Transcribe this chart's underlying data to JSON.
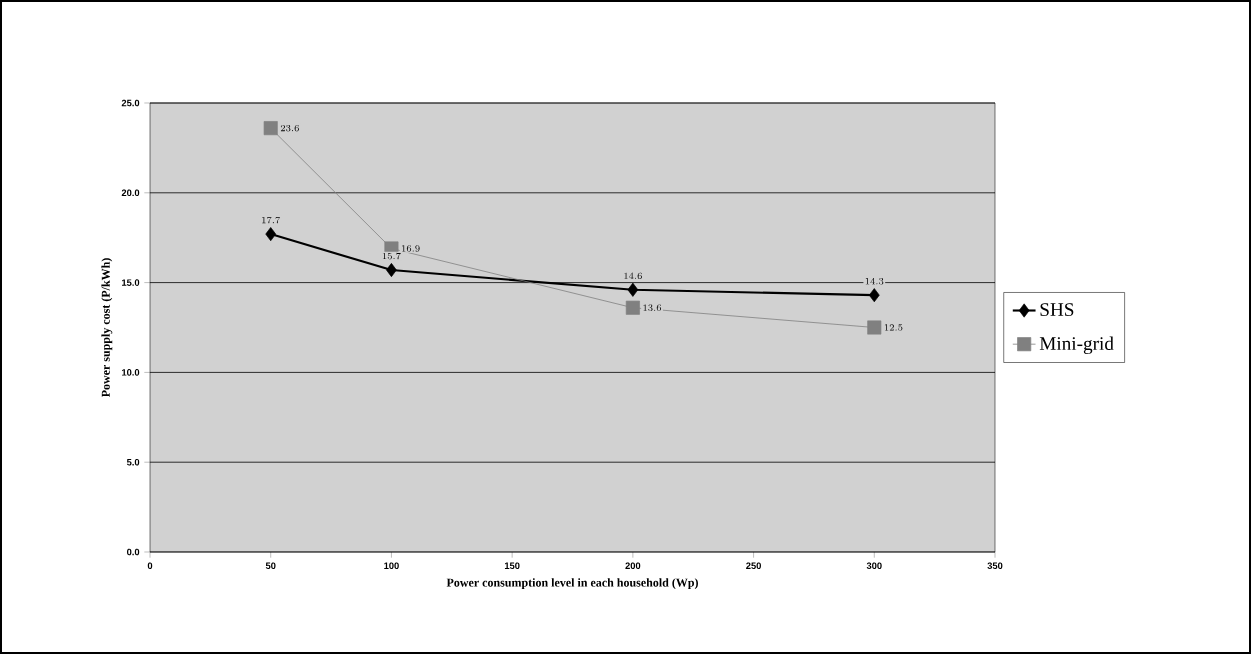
{
  "chart_data": {
    "type": "line",
    "xlabel": "Power consumption level in each household (Wp)",
    "ylabel": "Power supply cost (P/kWh)",
    "x": [
      50,
      100,
      200,
      300
    ],
    "series": [
      {
        "name": "SHS",
        "color": "#000000",
        "marker": "diamond",
        "values": [
          17.7,
          15.7,
          14.6,
          14.3
        ]
      },
      {
        "name": "Mini-grid",
        "color": "#808080",
        "marker": "square",
        "values": [
          23.6,
          16.9,
          13.6,
          12.5
        ]
      }
    ],
    "xlim": [
      0,
      350
    ],
    "xticks": [
      0,
      50,
      100,
      150,
      200,
      250,
      300,
      350
    ],
    "ylim": [
      0,
      25
    ],
    "yticks": [
      {
        "value": 0,
        "label": "0.0"
      },
      {
        "value": 5,
        "label": "5.0"
      },
      {
        "value": 10,
        "label": "10.0"
      },
      {
        "value": 15,
        "label": "15.0"
      },
      {
        "value": 20,
        "label": "20.0"
      },
      {
        "value": 25,
        "label": "25.0"
      }
    ],
    "grid": "y",
    "legend": "right",
    "data_labels": true,
    "line_style": "solid"
  }
}
